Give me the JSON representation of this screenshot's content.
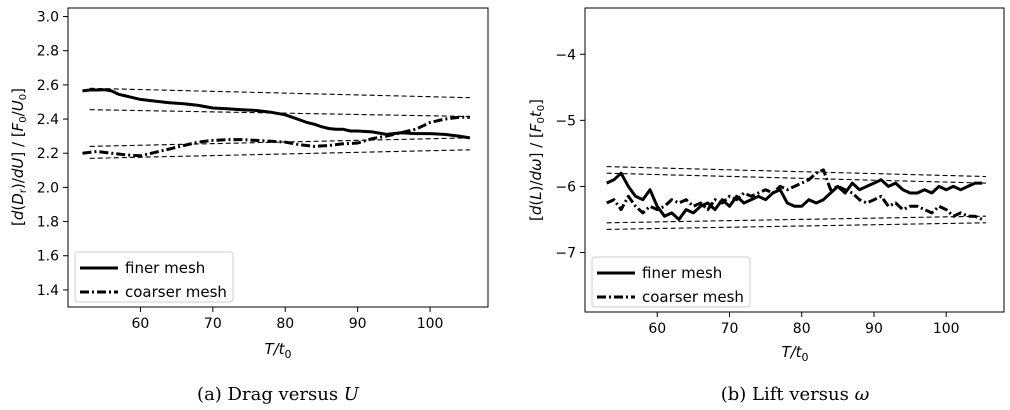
{
  "chart_data": [
    {
      "type": "line",
      "subplot_label": "(a)",
      "caption": "Drag versus U",
      "xlabel": "T/t0",
      "ylabel": "[d(Dr)/dU] / [F0/U0]",
      "xlim": [
        50,
        108
      ],
      "ylim": [
        1.3,
        3.05
      ],
      "xticks": [
        60,
        70,
        80,
        90,
        100
      ],
      "yticks": [
        1.4,
        1.6,
        1.8,
        2.0,
        2.2,
        2.4,
        2.6,
        2.8,
        3.0
      ],
      "ytick_labels": [
        "1.4",
        "1.6",
        "1.8",
        "2.0",
        "2.2",
        "2.4",
        "2.6",
        "2.8",
        "3.0"
      ],
      "legend_position": "lower-left",
      "series": [
        {
          "name": "finer mesh",
          "style": "solid",
          "x": [
            52,
            53,
            54,
            55,
            56,
            57,
            58,
            60,
            62,
            64,
            66,
            68,
            70,
            72,
            74,
            76,
            78,
            80,
            81,
            82,
            83,
            84,
            85,
            86,
            87,
            88,
            89,
            90,
            92,
            94,
            96,
            98,
            100,
            102,
            104,
            105.5
          ],
          "y": [
            2.565,
            2.57,
            2.57,
            2.572,
            2.565,
            2.545,
            2.535,
            2.515,
            2.505,
            2.495,
            2.49,
            2.48,
            2.465,
            2.46,
            2.455,
            2.45,
            2.44,
            2.425,
            2.41,
            2.395,
            2.38,
            2.37,
            2.355,
            2.345,
            2.34,
            2.34,
            2.33,
            2.33,
            2.325,
            2.31,
            2.32,
            2.315,
            2.315,
            2.31,
            2.3,
            2.29
          ]
        },
        {
          "name": "coarser mesh",
          "style": "dashdot",
          "x": [
            52,
            54,
            56,
            58,
            60,
            62,
            64,
            66,
            68,
            70,
            72,
            74,
            76,
            78,
            80,
            82,
            84,
            86,
            88,
            90,
            92,
            94,
            96,
            98,
            100,
            102,
            104,
            105.5
          ],
          "y": [
            2.2,
            2.21,
            2.2,
            2.19,
            2.185,
            2.205,
            2.225,
            2.245,
            2.265,
            2.275,
            2.28,
            2.28,
            2.275,
            2.27,
            2.265,
            2.25,
            2.24,
            2.245,
            2.255,
            2.26,
            2.285,
            2.3,
            2.32,
            2.34,
            2.38,
            2.4,
            2.41,
            2.41
          ]
        }
      ],
      "reference_lines": [
        {
          "x": [
            53,
            105.5
          ],
          "y": [
            2.58,
            2.525
          ]
        },
        {
          "x": [
            53,
            105.5
          ],
          "y": [
            2.455,
            2.415
          ]
        },
        {
          "x": [
            53,
            105.5
          ],
          "y": [
            2.24,
            2.29
          ]
        },
        {
          "x": [
            53,
            105.5
          ],
          "y": [
            2.17,
            2.22
          ]
        }
      ]
    },
    {
      "type": "line",
      "subplot_label": "(b)",
      "caption": "Lift versus ω",
      "xlabel": "T/t0",
      "ylabel": "[d(L)/dω] / [F0t0]",
      "xlim": [
        50,
        108
      ],
      "ylim": [
        -7.9,
        -3.3
      ],
      "xticks": [
        60,
        70,
        80,
        90,
        100
      ],
      "yticks": [
        -7,
        -6,
        -5,
        -4
      ],
      "ytick_labels": [
        "−7",
        "−6",
        "−5",
        "−4"
      ],
      "legend_position": "lower-left",
      "series": [
        {
          "name": "finer mesh",
          "style": "solid",
          "x": [
            53,
            54,
            55,
            56,
            57,
            58,
            59,
            60,
            61,
            62,
            63,
            64,
            65,
            66,
            67,
            68,
            69,
            70,
            71,
            72,
            73,
            74,
            75,
            76,
            77,
            78,
            79,
            80,
            81,
            82,
            83,
            84,
            85,
            86,
            87,
            88,
            89,
            90,
            91,
            92,
            93,
            94,
            95,
            96,
            97,
            98,
            99,
            100,
            101,
            102,
            103,
            104,
            105
          ],
          "y": [
            -5.95,
            -5.9,
            -5.8,
            -6.0,
            -6.15,
            -6.2,
            -6.05,
            -6.3,
            -6.45,
            -6.4,
            -6.5,
            -6.35,
            -6.4,
            -6.3,
            -6.25,
            -6.35,
            -6.2,
            -6.3,
            -6.15,
            -6.25,
            -6.2,
            -6.15,
            -6.2,
            -6.1,
            -6.05,
            -6.25,
            -6.3,
            -6.3,
            -6.2,
            -6.25,
            -6.2,
            -6.1,
            -6.0,
            -6.1,
            -5.95,
            -6.05,
            -6.0,
            -5.95,
            -5.9,
            -6.0,
            -5.95,
            -6.05,
            -6.1,
            -6.1,
            -6.05,
            -6.1,
            -6.0,
            -6.05,
            -6.0,
            -6.05,
            -6.0,
            -5.95,
            -5.95
          ]
        },
        {
          "name": "coarser mesh",
          "style": "dashdot",
          "x": [
            53,
            54,
            55,
            56,
            57,
            58,
            59,
            60,
            61,
            62,
            63,
            64,
            65,
            66,
            67,
            68,
            69,
            70,
            71,
            72,
            73,
            74,
            75,
            76,
            77,
            78,
            79,
            80,
            81,
            82,
            83,
            84,
            85,
            86,
            87,
            88,
            89,
            90,
            91,
            92,
            93,
            94,
            95,
            96,
            97,
            98,
            99,
            100,
            101,
            102,
            103,
            104,
            105
          ],
          "y": [
            -6.25,
            -6.2,
            -6.35,
            -6.15,
            -6.3,
            -6.4,
            -6.3,
            -6.35,
            -6.3,
            -6.2,
            -6.25,
            -6.2,
            -6.3,
            -6.25,
            -6.35,
            -6.2,
            -6.25,
            -6.15,
            -6.2,
            -6.1,
            -6.15,
            -6.1,
            -6.05,
            -6.1,
            -6.0,
            -6.05,
            -6.0,
            -5.95,
            -5.9,
            -5.8,
            -5.75,
            -6.05,
            -6.0,
            -6.05,
            -6.1,
            -6.2,
            -6.25,
            -6.2,
            -6.15,
            -6.3,
            -6.25,
            -6.35,
            -6.3,
            -6.3,
            -6.35,
            -6.4,
            -6.3,
            -6.35,
            -6.45,
            -6.4,
            -6.45,
            -6.45,
            -6.5
          ]
        }
      ],
      "reference_lines": [
        {
          "x": [
            53,
            105.5
          ],
          "y": [
            -5.7,
            -5.85
          ]
        },
        {
          "x": [
            53,
            105.5
          ],
          "y": [
            -5.8,
            -5.95
          ]
        },
        {
          "x": [
            53,
            105.5
          ],
          "y": [
            -6.55,
            -6.45
          ]
        },
        {
          "x": [
            53,
            105.5
          ],
          "y": [
            -6.65,
            -6.55
          ]
        }
      ]
    }
  ]
}
